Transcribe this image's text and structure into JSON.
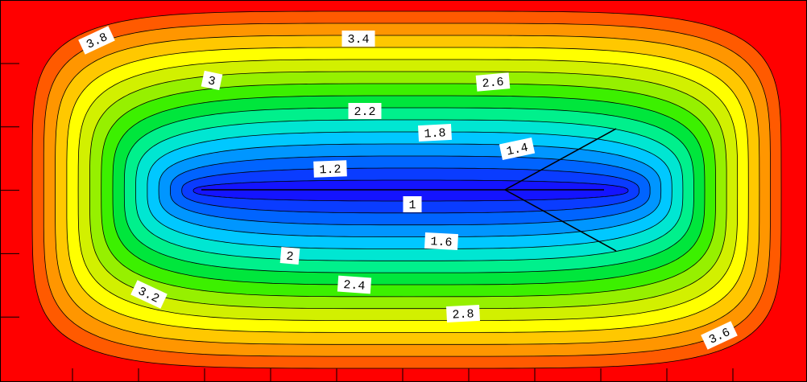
{
  "chart_data": {
    "type": "contour",
    "levels": [
      1,
      1.2,
      1.4,
      1.6,
      1.8,
      2,
      2.2,
      2.4,
      2.6,
      2.8,
      3,
      3.2,
      3.4,
      3.6,
      3.8
    ],
    "colors": [
      "#1414ff",
      "#0a3cff",
      "#0064ff",
      "#0096ff",
      "#00c8ff",
      "#00e6d2",
      "#00f08c",
      "#00e63c",
      "#3cf000",
      "#96f000",
      "#d2f000",
      "#ffff00",
      "#ffc800",
      "#ff9600",
      "#ff5a00",
      "#ff0000"
    ]
  }
}
